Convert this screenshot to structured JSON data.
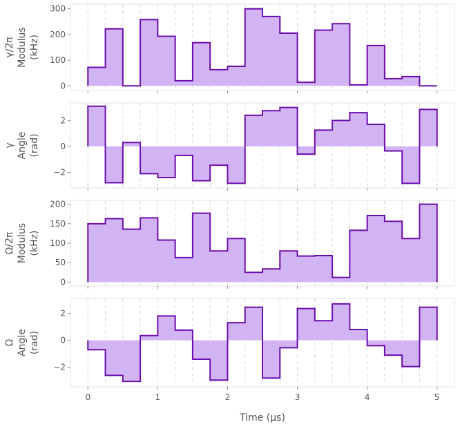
{
  "chart_data": {
    "type": "area",
    "xlabel": "Time (µs)",
    "x_edges": [
      0,
      0.25,
      0.5,
      0.75,
      1.0,
      1.25,
      1.5,
      1.75,
      2.0,
      2.25,
      2.5,
      2.75,
      3.0,
      3.25,
      3.5,
      3.75,
      4.0,
      4.25,
      4.5,
      4.75,
      5.0
    ],
    "x_ticks": [
      0,
      1,
      2,
      3,
      4,
      5
    ],
    "x_tick_labels": [
      "0",
      "1",
      "2",
      "3",
      "4",
      "5"
    ],
    "xlim": [
      -0.25,
      5.25
    ],
    "grid": "vertical dashed lines at segment boundaries",
    "colors": {
      "line": "#6a0dad",
      "fill": "#d2b4f5",
      "grid": "#d9d9d9",
      "text": "#555555"
    },
    "panels": [
      {
        "ylabel_lines": [
          "γ/2π",
          "Modulus",
          "(kHz)"
        ],
        "yticks": [
          0,
          100,
          200,
          300
        ],
        "ytick_labels": [
          "0",
          "100",
          "200",
          "300"
        ],
        "ylim": [
          -18,
          318
        ],
        "values": [
          72,
          222,
          0,
          258,
          193,
          20,
          168,
          63,
          76,
          300,
          270,
          205,
          14,
          217,
          242,
          4,
          157,
          28,
          36,
          0
        ]
      },
      {
        "ylabel_lines": [
          "γ",
          "Angle",
          "(rad)"
        ],
        "yticks": [
          -2,
          0,
          2
        ],
        "ytick_labels": [
          "−2",
          "0",
          "2"
        ],
        "ylim": [
          -3.2,
          3.35
        ],
        "values": [
          3.1,
          -2.8,
          0.3,
          -2.1,
          -2.4,
          -0.7,
          -2.65,
          -1.45,
          -2.85,
          2.4,
          2.75,
          3.0,
          -0.6,
          1.25,
          2.0,
          2.6,
          1.7,
          -0.35,
          -2.85,
          2.85
        ]
      },
      {
        "ylabel_lines": [
          "Ω/2π",
          "Modulus",
          "(kHz)"
        ],
        "yticks": [
          0,
          50,
          100,
          150,
          200
        ],
        "ytick_labels": [
          "0",
          "50",
          "100",
          "150",
          "200"
        ],
        "ylim": [
          -10,
          210
        ],
        "values": [
          150,
          163,
          136,
          165,
          108,
          63,
          177,
          80,
          112,
          25,
          34,
          80,
          67,
          68,
          12,
          133,
          171,
          156,
          112,
          200
        ]
      },
      {
        "ylabel_lines": [
          "Ω",
          "Angle",
          "(rad)"
        ],
        "yticks": [
          -2,
          0,
          2
        ],
        "ytick_labels": [
          "−2",
          "0",
          "2"
        ],
        "ylim": [
          -3.45,
          3.1
        ],
        "values": [
          -0.7,
          -2.6,
          -3.05,
          0.35,
          1.8,
          0.75,
          -1.4,
          -2.95,
          1.3,
          2.45,
          -2.8,
          -0.55,
          2.35,
          1.45,
          2.7,
          0.8,
          -0.4,
          -1.1,
          -1.95,
          2.45
        ]
      }
    ]
  }
}
